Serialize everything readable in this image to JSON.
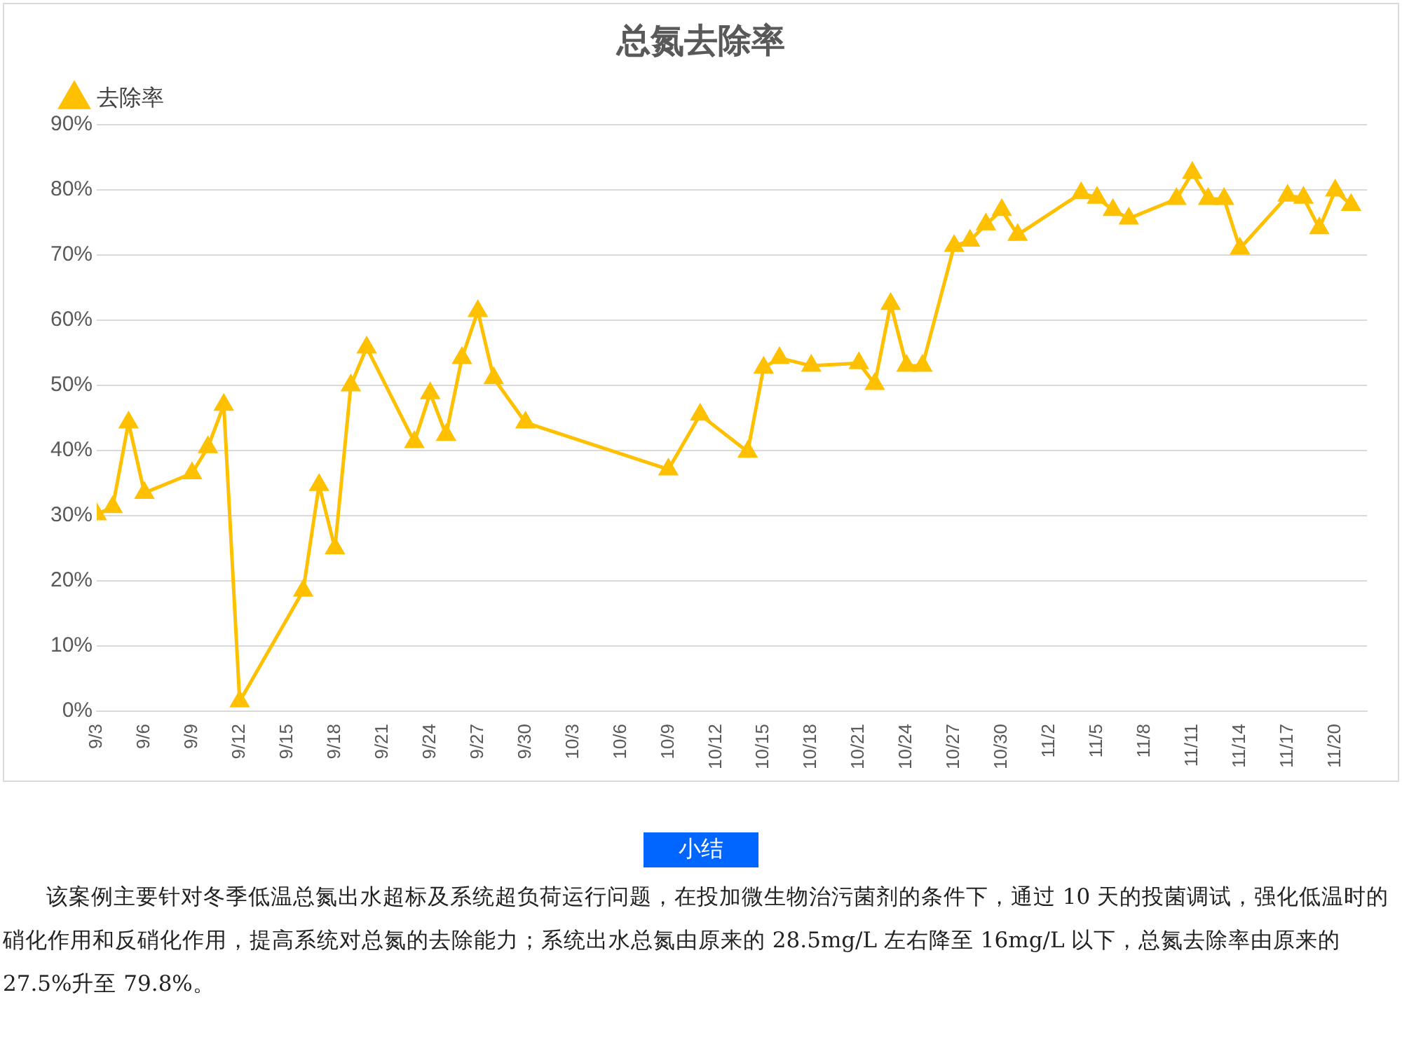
{
  "chart_data": {
    "type": "line",
    "title": "总氮去除率",
    "series": [
      {
        "name": "去除率",
        "color": "#ffc000",
        "x": [
          "--09-03",
          "--09-04",
          "--09-05",
          "--09-06",
          "--09-09",
          "--09-10",
          "--09-11",
          "--09-12",
          "--09-16",
          "--09-17",
          "--09-18",
          "--09-19",
          "--09-20",
          "--09-23",
          "--09-24",
          "--09-25",
          "--09-26",
          "--09-27",
          "--09-28",
          "--09-30",
          "--10-09",
          "--10-11",
          "--10-14",
          "--10-15",
          "--10-16",
          "--10-18",
          "--10-21",
          "--10-22",
          "--10-23",
          "--10-24",
          "--10-25",
          "--10-27",
          "--10-28",
          "--10-29",
          "--10-30",
          "--10-31",
          "--11-04",
          "--11-05",
          "--11-06",
          "--11-07",
          "--11-10",
          "--11-11",
          "--11-12",
          "--11-13",
          "--11-14",
          "--11-17",
          "--11-18",
          "--11-19",
          "--11-20",
          "--11-21"
        ],
        "values": [
          30.2,
          31.3,
          44.3,
          33.5,
          36.5,
          40.5,
          47,
          1.5,
          18.5,
          34.7,
          25,
          50,
          55.8,
          41.3,
          48.8,
          42.4,
          54.2,
          61.4,
          51.1,
          44.3,
          37.1,
          45.5,
          39.8,
          52.7,
          54.2,
          53,
          53.4,
          50.2,
          62.5,
          53,
          53,
          71.4,
          72.2,
          74.7,
          76.9,
          73.1,
          79.5,
          78.8,
          76.9,
          75.6,
          78.6,
          82.6,
          78.6,
          78.6,
          71,
          79.1,
          78.8,
          74.1,
          79.9,
          77.7
        ]
      }
    ],
    "xlim": [
      "--09-03",
      "--11-22"
    ],
    "xticks": [
      {
        "value": "--09-03",
        "label": "9/3"
      },
      {
        "value": "--09-06",
        "label": "9/6"
      },
      {
        "value": "--09-09",
        "label": "9/9"
      },
      {
        "value": "--09-12",
        "label": "9/12"
      },
      {
        "value": "--09-15",
        "label": "9/15"
      },
      {
        "value": "--09-18",
        "label": "9/18"
      },
      {
        "value": "--09-21",
        "label": "9/21"
      },
      {
        "value": "--09-24",
        "label": "9/24"
      },
      {
        "value": "--09-27",
        "label": "9/27"
      },
      {
        "value": "--09-30",
        "label": "9/30"
      },
      {
        "value": "--10-03",
        "label": "10/3"
      },
      {
        "value": "--10-06",
        "label": "10/6"
      },
      {
        "value": "--10-09",
        "label": "10/9"
      },
      {
        "value": "--10-12",
        "label": "10/12"
      },
      {
        "value": "--10-15",
        "label": "10/15"
      },
      {
        "value": "--10-18",
        "label": "10/18"
      },
      {
        "value": "--10-21",
        "label": "10/21"
      },
      {
        "value": "--10-24",
        "label": "10/24"
      },
      {
        "value": "--10-27",
        "label": "10/27"
      },
      {
        "value": "--10-30",
        "label": "10/30"
      },
      {
        "value": "--11-02",
        "label": "11/2"
      },
      {
        "value": "--11-05",
        "label": "11/5"
      },
      {
        "value": "--11-08",
        "label": "11/8"
      },
      {
        "value": "--11-11",
        "label": "11/11"
      },
      {
        "value": "--11-14",
        "label": "11/14"
      },
      {
        "value": "--11-17",
        "label": "11/17"
      },
      {
        "value": "--11-20",
        "label": "11/20"
      }
    ],
    "ylim": [
      0,
      90
    ],
    "yticks": [
      {
        "value": 0,
        "label": "0%"
      },
      {
        "value": 10,
        "label": "10%"
      },
      {
        "value": 20,
        "label": "20%"
      },
      {
        "value": 30,
        "label": "30%"
      },
      {
        "value": 40,
        "label": "40%"
      },
      {
        "value": 50,
        "label": "50%"
      },
      {
        "value": 60,
        "label": "60%"
      },
      {
        "value": 70,
        "label": "70%"
      },
      {
        "value": 80,
        "label": "80%"
      },
      {
        "value": 90,
        "label": "90%"
      }
    ],
    "grid": "y",
    "legend": "top left",
    "marker": "triangle",
    "line_style": "solid",
    "annotations": [
      "小结",
      "该案例主要针对冬季低温总氮出水超标及系统超负荷运行问题，在投加微生物治污菌剂的条件下，通过 10 天的投菌调试，强化低温时的硝化作用和反硝化作用，提高系统对总氮的去除能力；系统出水总氮由原来的 28.5mg/L 左右降至 16mg/L 以下，总氮去除率由原来的 27.5%升至 79.8%。"
    ]
  }
}
